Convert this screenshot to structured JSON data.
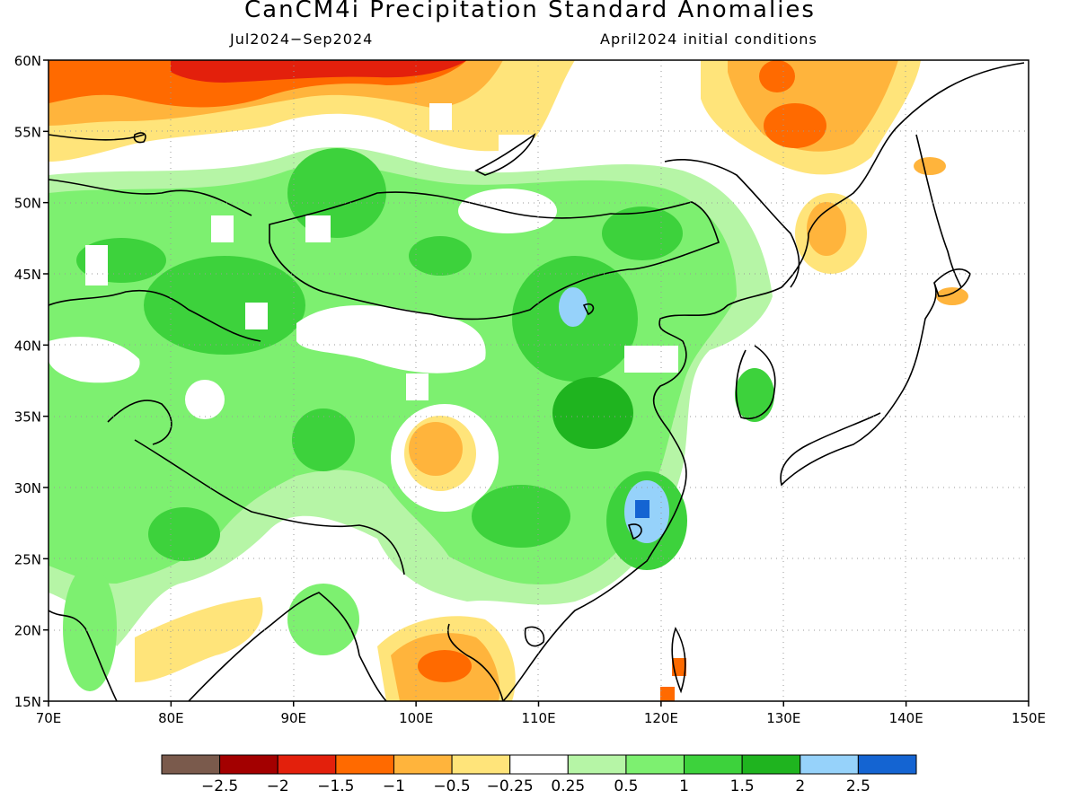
{
  "title": "CanCM4i Precipitation Standard Anomalies",
  "period": "Jul2024−Sep2024",
  "initial_conditions": "April2024 initial conditions",
  "map": {
    "lon_range": [
      70,
      150
    ],
    "lat_range": [
      15,
      60
    ],
    "lon_ticks": [
      "70E",
      "80E",
      "90E",
      "100E",
      "110E",
      "120E",
      "130E",
      "140E",
      "150E"
    ],
    "lat_ticks": [
      "15N",
      "20N",
      "25N",
      "30N",
      "35N",
      "40N",
      "45N",
      "50N",
      "55N",
      "60N"
    ],
    "grid": "dotted",
    "field": "precipitation standard anomaly"
  },
  "colorbar": {
    "colors": [
      "#7a5a4c",
      "#a30000",
      "#e3200c",
      "#ff6a00",
      "#ffb43c",
      "#ffe47a",
      "#ffffff",
      "#b6f5a6",
      "#7df070",
      "#3dd23c",
      "#1fb41f",
      "#96d2fa",
      "#1464d2"
    ],
    "labels": [
      "−2.5",
      "−2",
      "−1.5",
      "−1",
      "−0.5",
      "−0.25",
      "0.25",
      "0.5",
      "1",
      "1.5",
      "2",
      "2.5"
    ]
  }
}
